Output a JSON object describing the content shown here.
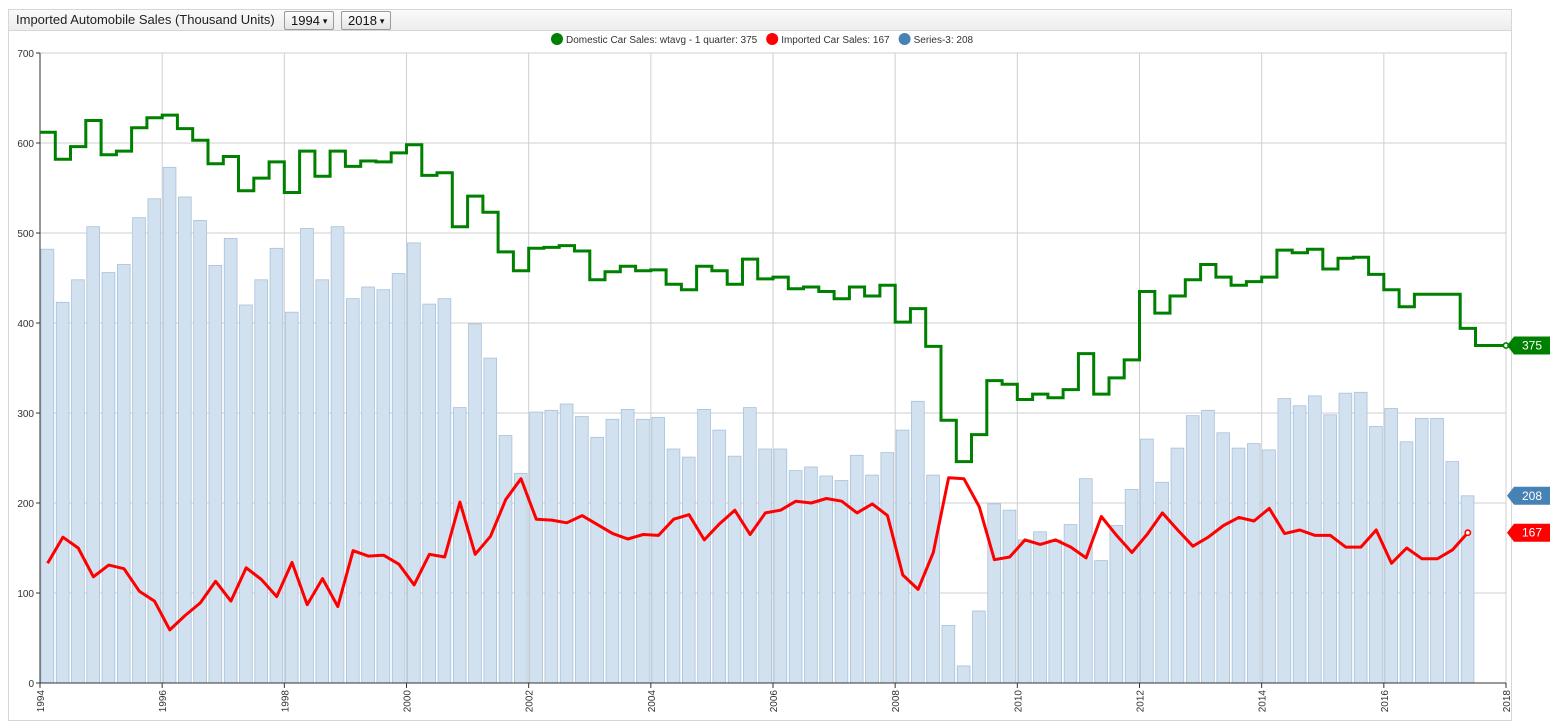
{
  "widget": {
    "title": "Imported Automobile Sales (Thousand Units)",
    "start_year": "1994",
    "end_year": "2018",
    "dropdown_arrow": "▾"
  },
  "legend": [
    {
      "label": "Domestic Car Sales: wtavg - 1 quarter: 375",
      "color": "#008000"
    },
    {
      "label": "Imported Car Sales: 167",
      "color": "#ff0000"
    },
    {
      "label": "Series-3: 208",
      "color": "#4682b4"
    }
  ],
  "badges": {
    "domestic": "375",
    "series3": "208",
    "imported": "167"
  },
  "colors": {
    "domestic": "#008000",
    "imported": "#ff0000",
    "series3": "#4682b4",
    "bar_fill": "#d2e1ef",
    "bar_stroke": "#a9c1d9",
    "grid": "#cfcfcf"
  },
  "chart_data": {
    "type": "bar",
    "x_range": [
      1994,
      2018
    ],
    "ylim": [
      0,
      700
    ],
    "y_ticks": [
      "0",
      "100",
      "200",
      "300",
      "400",
      "500",
      "600",
      "700"
    ],
    "x_ticks": [
      "1994",
      "1996",
      "1998",
      "2000",
      "2002",
      "2004",
      "2006",
      "2008",
      "2010",
      "2012",
      "2014",
      "2016",
      "2018"
    ],
    "grid": true,
    "legend_position": "top-center",
    "series": [
      {
        "name": "Domestic Car Sales: wtavg - 1 quarter",
        "type": "step-line",
        "start": 1994,
        "step": 0.25,
        "values": [
          612,
          582,
          596,
          625,
          587,
          591,
          617,
          628,
          631,
          616,
          603,
          577,
          585,
          547,
          561,
          579,
          545,
          591,
          563,
          591,
          574,
          580,
          579,
          589,
          598,
          564,
          567,
          507,
          541,
          523,
          479,
          458,
          483,
          484,
          486,
          480,
          448,
          457,
          463,
          458,
          459,
          443,
          437,
          463,
          458,
          443,
          471,
          449,
          451,
          438,
          440,
          435,
          427,
          440,
          430,
          442,
          401,
          416,
          374,
          292,
          246,
          276,
          336,
          332,
          315,
          321,
          317,
          326,
          366,
          321,
          339,
          359,
          435,
          411,
          430,
          448,
          465,
          451,
          442,
          446,
          451,
          481,
          478,
          482,
          460,
          472,
          473,
          454,
          437,
          418,
          432,
          432,
          432,
          394,
          375,
          375
        ],
        "last_value": 375
      },
      {
        "name": "Imported Car Sales",
        "type": "line",
        "start": 1994,
        "step": 0.25,
        "values": [
          133,
          162,
          150,
          118,
          131,
          127,
          102,
          91,
          59,
          75,
          89,
          113,
          91,
          128,
          115,
          96,
          134,
          87,
          116,
          85,
          147,
          141,
          142,
          132,
          109,
          143,
          140,
          201,
          143,
          163,
          204,
          227,
          182,
          181,
          178,
          186,
          176,
          166,
          160,
          165,
          164,
          182,
          187,
          159,
          177,
          192,
          165,
          189,
          192,
          202,
          200,
          205,
          202,
          189,
          199,
          186,
          120,
          104,
          145,
          228,
          227,
          196,
          137,
          140,
          159,
          154,
          159,
          151,
          139,
          185,
          164,
          145,
          165,
          189,
          170,
          152,
          162,
          175,
          184,
          180,
          194,
          166,
          170,
          164,
          164,
          151,
          151,
          170,
          133,
          150,
          138,
          138,
          148,
          167
        ],
        "last_value": 167
      },
      {
        "name": "Series-3",
        "type": "bar",
        "start": 1994,
        "step": 0.25,
        "values": [
          482,
          423,
          448,
          507,
          456,
          465,
          517,
          538,
          573,
          540,
          514,
          464,
          494,
          420,
          448,
          483,
          412,
          505,
          448,
          507,
          427,
          440,
          437,
          455,
          489,
          421,
          427,
          306,
          399,
          361,
          275,
          233,
          301,
          303,
          310,
          296,
          273,
          293,
          304,
          293,
          295,
          260,
          251,
          304,
          281,
          252,
          306,
          260,
          260,
          236,
          240,
          230,
          225,
          253,
          231,
          256,
          281,
          313,
          231,
          64,
          19,
          80,
          199,
          192,
          159,
          168,
          159,
          176,
          227,
          136,
          175,
          215,
          271,
          223,
          261,
          297,
          303,
          278,
          261,
          266,
          259,
          316,
          308,
          319,
          298,
          322,
          323,
          285,
          305,
          268,
          294,
          294,
          246,
          208
        ],
        "last_value": 208
      }
    ]
  }
}
